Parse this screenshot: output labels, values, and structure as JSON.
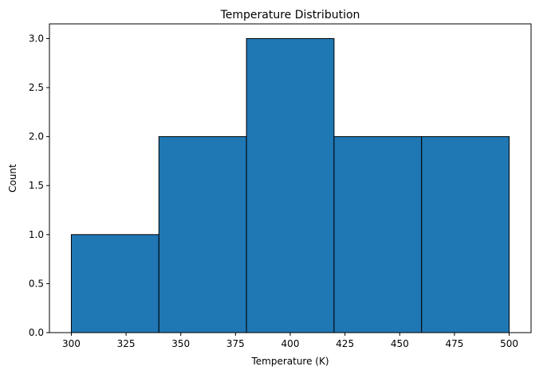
{
  "chart_data": {
    "type": "bar",
    "title": "Temperature Distribution",
    "xlabel": "Temperature (K)",
    "ylabel": "Count",
    "bin_edges": [
      300,
      340,
      380,
      420,
      460,
      500
    ],
    "values": [
      1,
      2,
      3,
      2,
      2
    ],
    "xlim": [
      290,
      510
    ],
    "ylim": [
      0,
      3.15
    ],
    "xticks": [
      "300",
      "325",
      "350",
      "375",
      "400",
      "425",
      "450",
      "475",
      "500"
    ],
    "yticks": [
      "0.0",
      "0.5",
      "1.0",
      "1.5",
      "2.0",
      "2.5",
      "3.0"
    ],
    "grid": false,
    "bar_color": "#1f77b4",
    "edge_color": "#000000"
  }
}
